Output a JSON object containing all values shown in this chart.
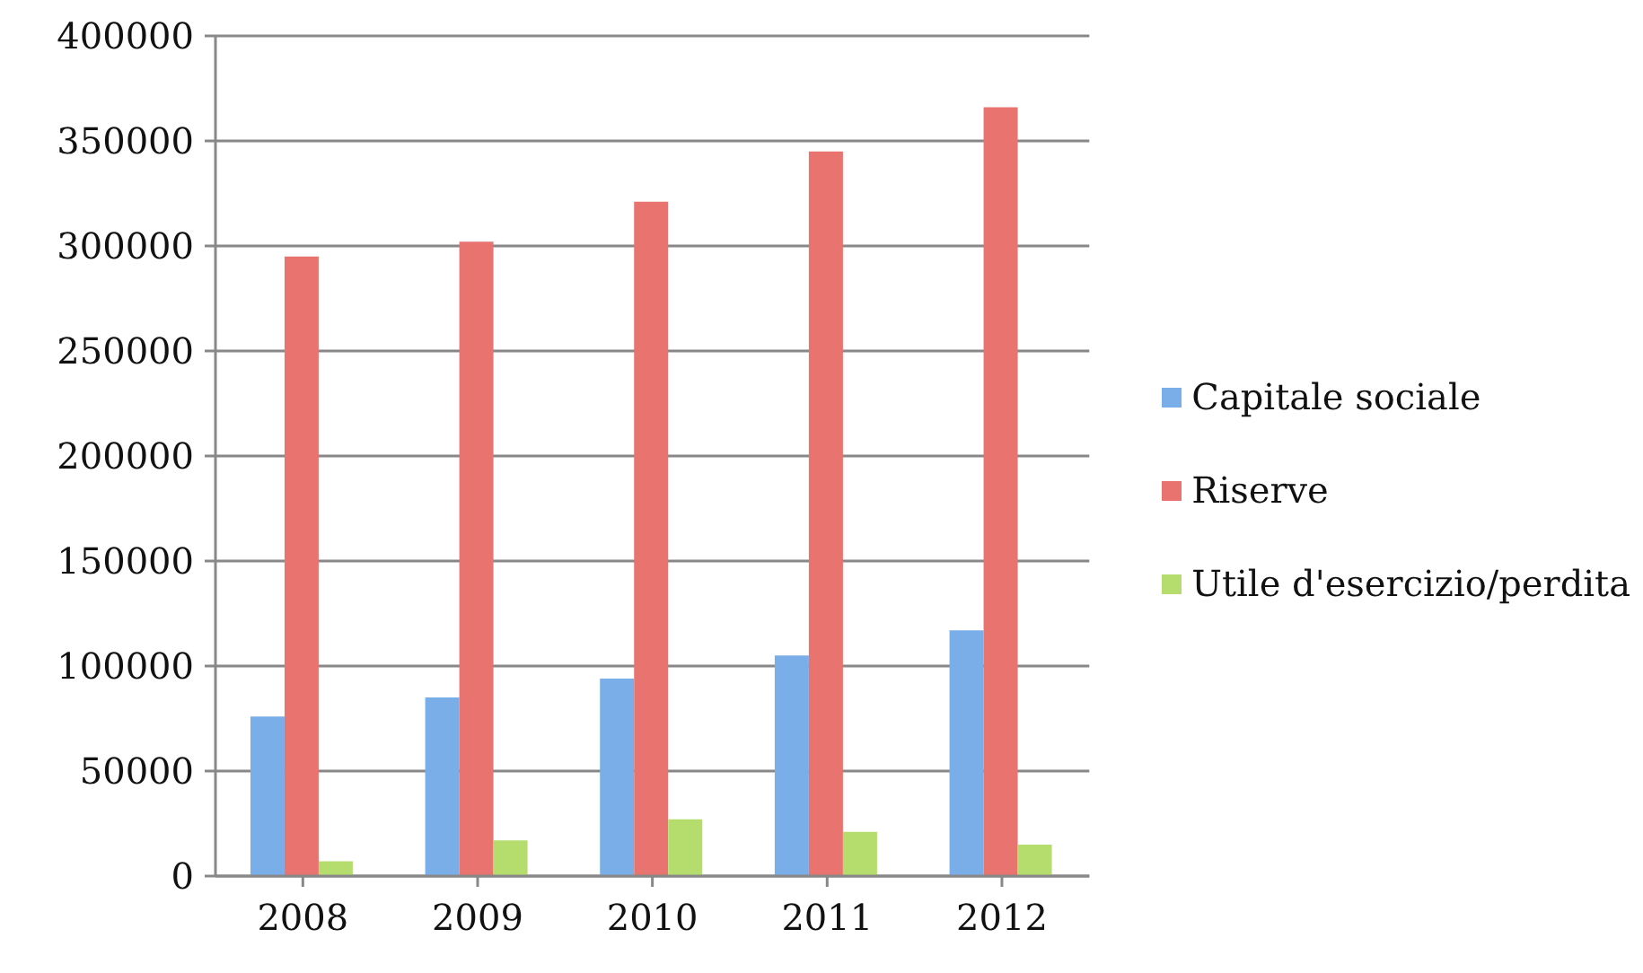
{
  "chart_data": {
    "type": "bar",
    "categories": [
      "2008",
      "2009",
      "2010",
      "2011",
      "2012"
    ],
    "series": [
      {
        "name": "Capitale sociale",
        "color": "#7aaee8",
        "values": [
          76000,
          85000,
          94000,
          105000,
          117000
        ]
      },
      {
        "name": "Riserve",
        "color": "#e8736f",
        "values": [
          295000,
          302000,
          321000,
          345000,
          366000
        ]
      },
      {
        "name": "Utile d'esercizio/perdita",
        "color": "#b5dd6e",
        "values": [
          7000,
          17000,
          27000,
          21000,
          15000
        ]
      }
    ],
    "ylim": [
      0,
      400000
    ],
    "yticks": [
      0,
      50000,
      100000,
      150000,
      200000,
      250000,
      300000,
      350000,
      400000
    ],
    "grid": "y",
    "legend": "right"
  }
}
